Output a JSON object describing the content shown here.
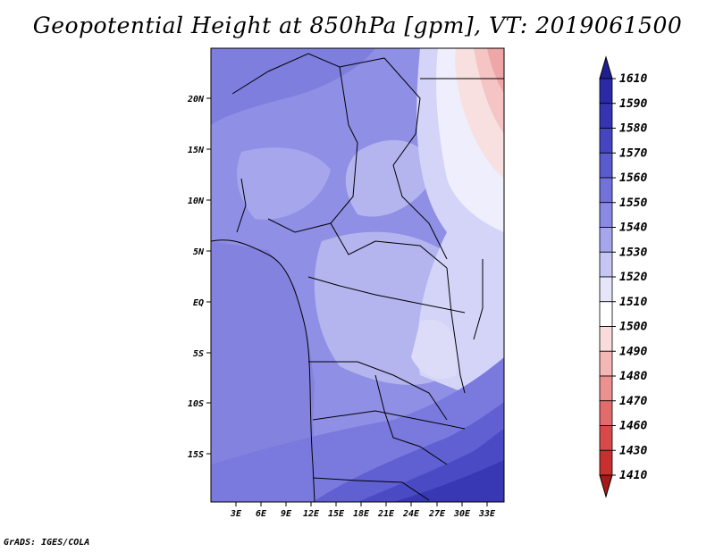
{
  "title": "Geopotential Height at 850hPa [gpm], VT: 2019061500",
  "credit": "GrADS: IGES/COLA",
  "map": {
    "lat_ticks": [
      "20N",
      "15N",
      "10N",
      "5N",
      "EQ",
      "5S",
      "10S",
      "15S"
    ],
    "lon_ticks": [
      "3E",
      "6E",
      "9E",
      "12E",
      "15E",
      "18E",
      "21E",
      "24E",
      "27E",
      "30E",
      "33E"
    ]
  },
  "colorbar": {
    "labels": [
      "1610",
      "1590",
      "1580",
      "1570",
      "1560",
      "1550",
      "1540",
      "1530",
      "1520",
      "1510",
      "1500",
      "1490",
      "1480",
      "1470",
      "1460",
      "1430",
      "1410"
    ],
    "colors": [
      "#1f1f8f",
      "#2a2aa6",
      "#3535b4",
      "#4545c2",
      "#5b5bd0",
      "#7272dc",
      "#8a8ae4",
      "#a6a6ec",
      "#c6c6f4",
      "#e6e6fb",
      "#ffffff",
      "#fbdcdc",
      "#f5b6b6",
      "#ec9090",
      "#e26c6c",
      "#d84a4a",
      "#c83030",
      "#a81818"
    ]
  }
}
